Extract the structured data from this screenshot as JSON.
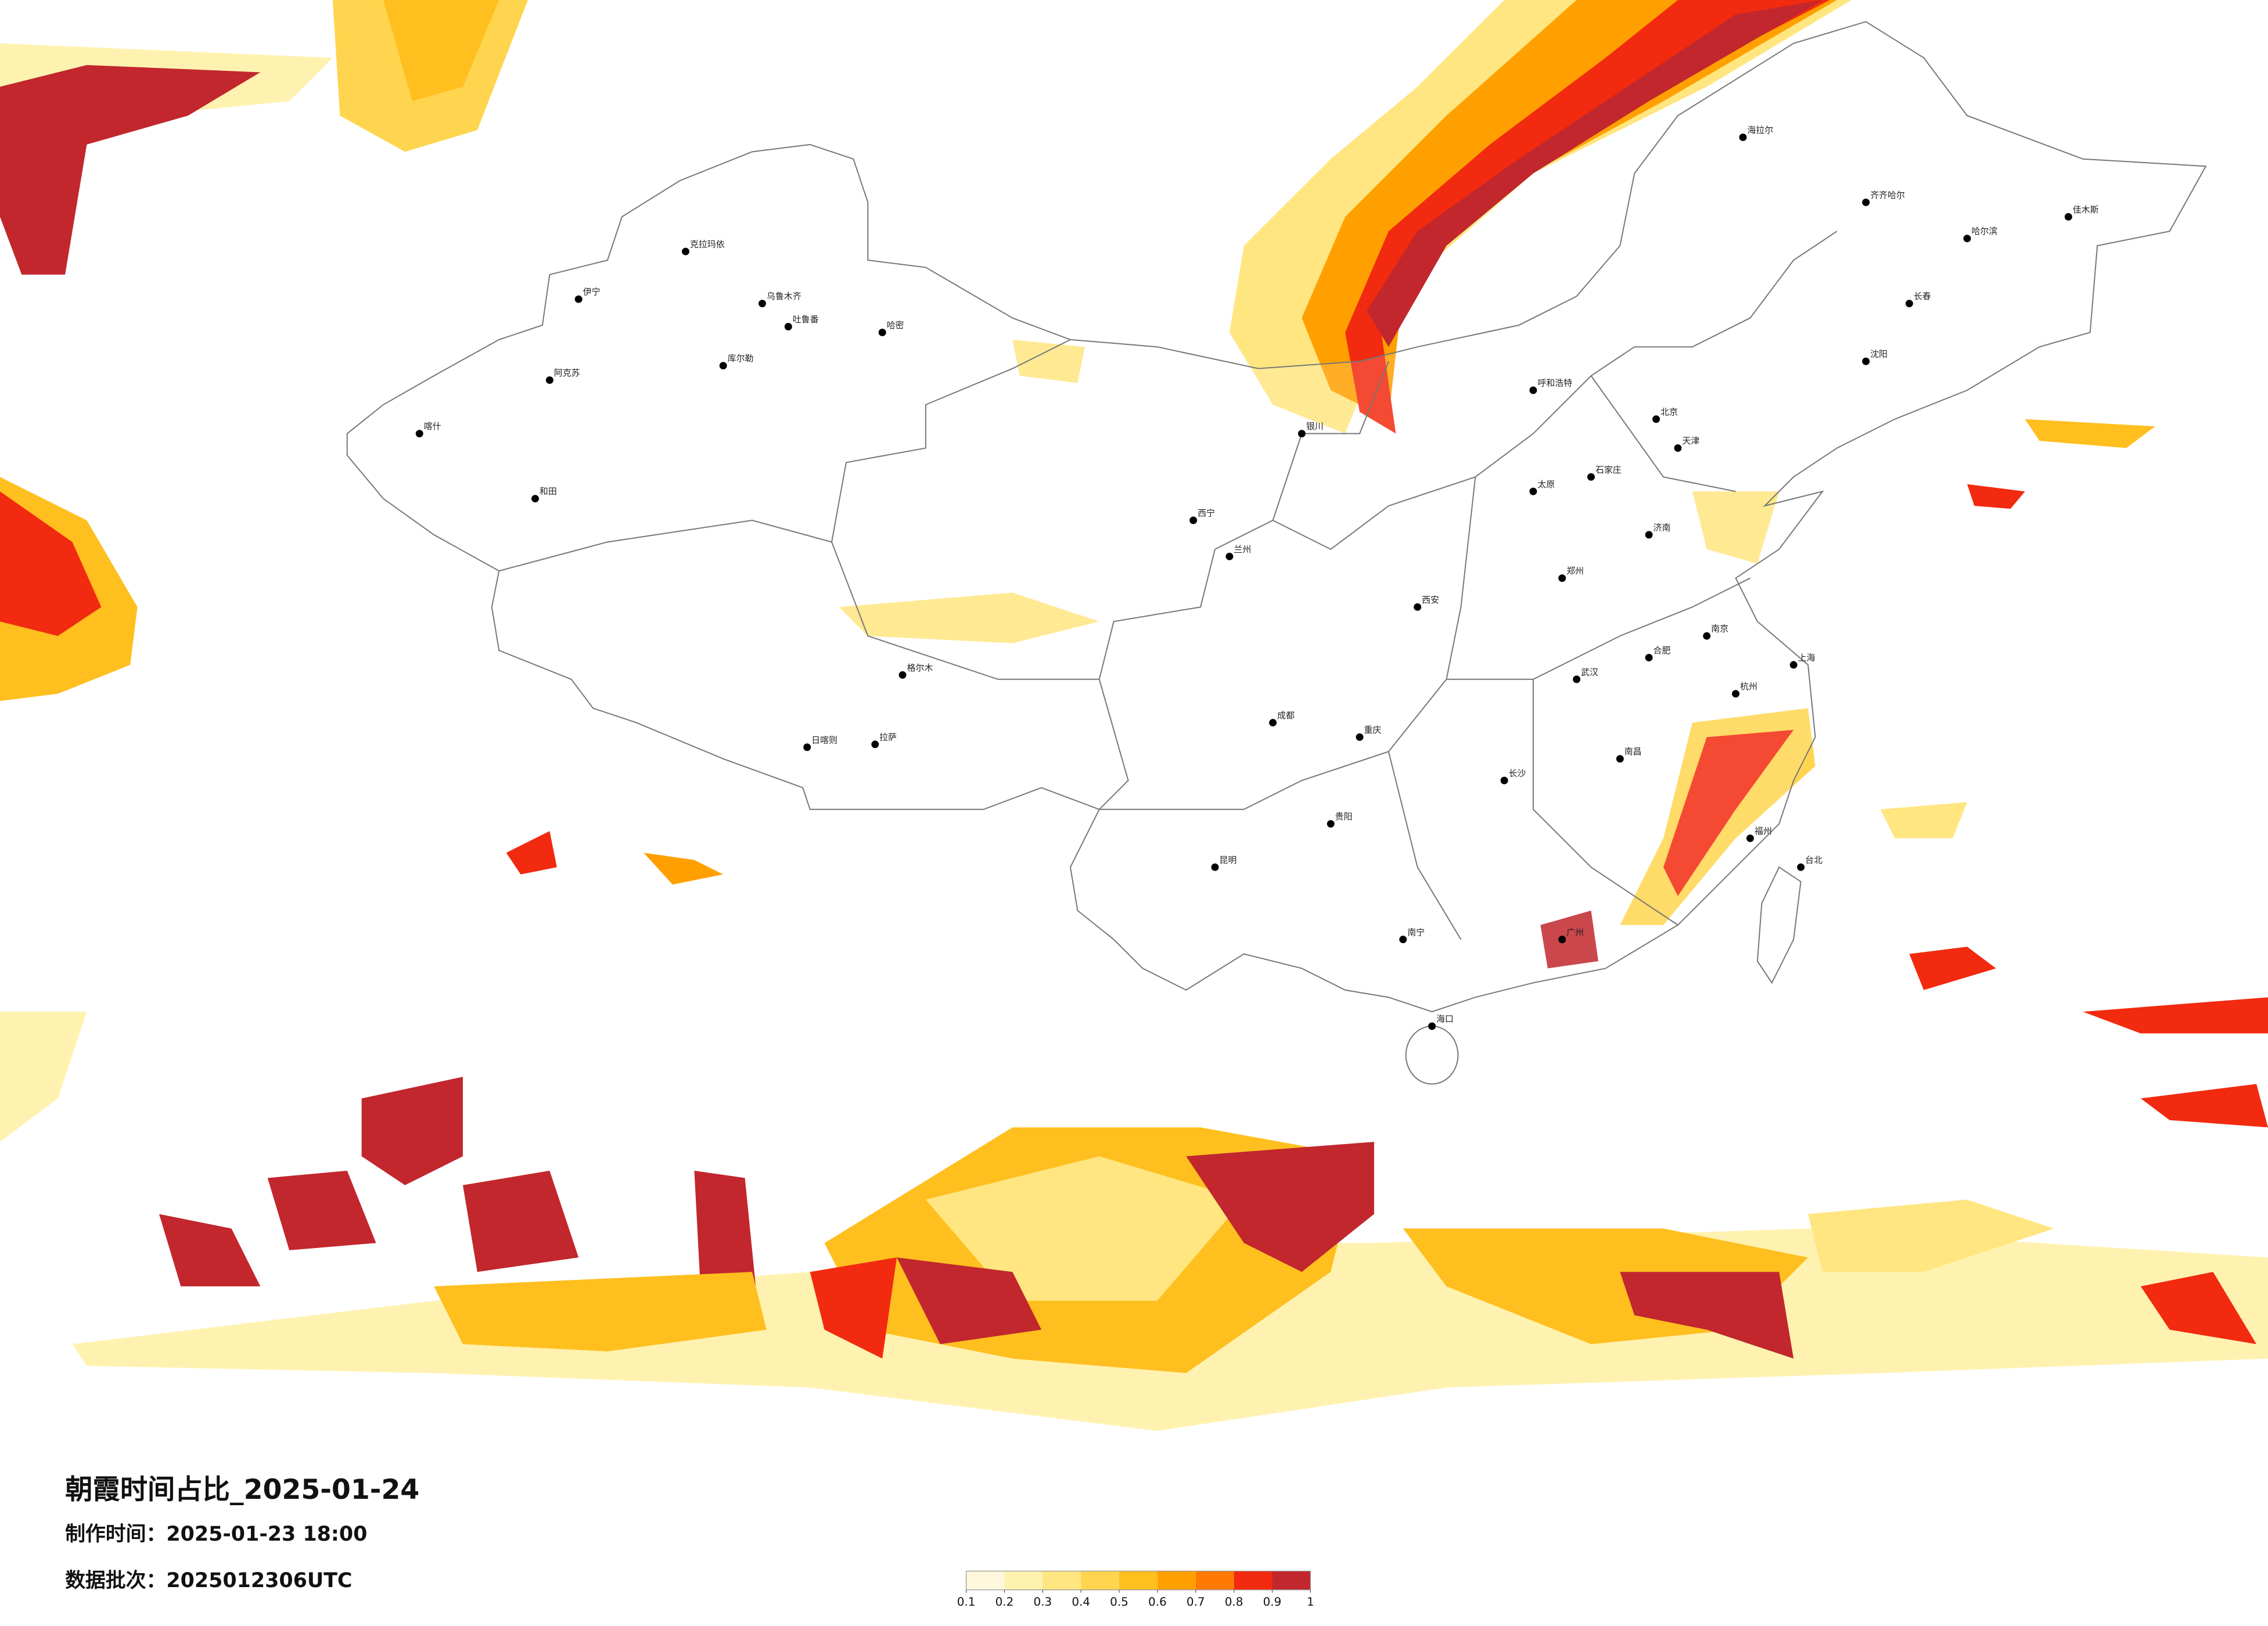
{
  "title": "朝霞时间占比_2025-01-24",
  "make_time": "制作时间：2025-01-23 18:00",
  "batch": "数据批次：2025012306UTC",
  "legend": {
    "colors": [
      "#fff8dc",
      "#fff2b0",
      "#ffe680",
      "#ffd54f",
      "#ffbf1f",
      "#ffa000",
      "#ff7a00",
      "#f22a0f",
      "#c1272d"
    ],
    "ticks": [
      0.1,
      0.2,
      0.3,
      0.4,
      0.5,
      0.6,
      0.7,
      0.8,
      0.9,
      1
    ]
  },
  "cities": [
    "克拉玛依",
    "伊宁",
    "乌鲁木齐",
    "吐鲁番",
    "库尔勒",
    "阿克苏",
    "喀什",
    "和田",
    "哈密",
    "格尔木",
    "拉萨",
    "日喀则",
    "西宁",
    "兰州",
    "银川",
    "呼和浩特",
    "北京",
    "天津",
    "石家庄",
    "太原",
    "济南",
    "郑州",
    "西安",
    "成都",
    "重庆",
    "贵阳",
    "昆明",
    "南宁",
    "广州",
    "长沙",
    "武汉",
    "南昌",
    "合肥",
    "南京",
    "上海",
    "杭州",
    "福州",
    "台北",
    "海口",
    "沈阳",
    "长春",
    "哈尔滨",
    "齐齐哈尔",
    "海拉尔",
    "佳木斯"
  ]
}
